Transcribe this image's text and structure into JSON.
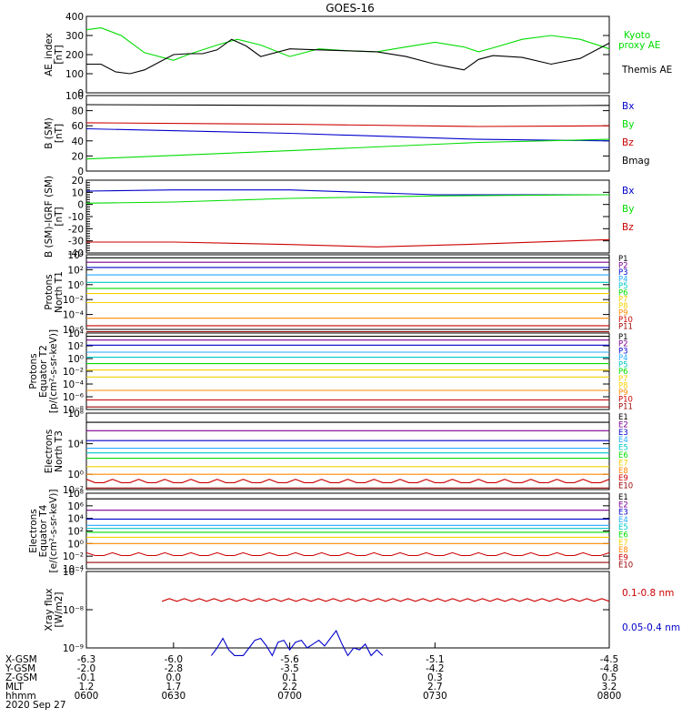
{
  "title": "GOES-16",
  "colors": {
    "black": "#000000",
    "green": "#00dd00",
    "blue": "#0000cc",
    "red": "#cc0000",
    "yellow": "#f5d000",
    "cyan": "#22aaff"
  },
  "chart_data": [
    {
      "type": "line",
      "ylabel": [
        "AE_index",
        "[nT]"
      ],
      "ylim": [
        0,
        400
      ],
      "yticks": [
        0,
        100,
        200,
        300,
        400
      ],
      "series": [
        {
          "name": "Kyoto proxy AE",
          "color": "#00dd00",
          "x": [
            6.3,
            6.25,
            6.18,
            6.1,
            6.0,
            5.95,
            5.85,
            5.78,
            5.7,
            5.6,
            5.5,
            5.4,
            5.3,
            5.2,
            5.1,
            5.0,
            4.95,
            4.9,
            4.8,
            4.7,
            4.6,
            4.5
          ],
          "y": [
            330,
            340,
            300,
            210,
            170,
            200,
            250,
            280,
            250,
            190,
            230,
            220,
            215,
            240,
            265,
            240,
            215,
            235,
            280,
            300,
            280,
            230
          ]
        },
        {
          "name": "Themis AE",
          "color": "#000000",
          "x": [
            6.3,
            6.25,
            6.2,
            6.15,
            6.1,
            6.05,
            6.0,
            5.95,
            5.9,
            5.85,
            5.8,
            5.75,
            5.7,
            5.6,
            5.5,
            5.4,
            5.3,
            5.2,
            5.1,
            5.05,
            5.0,
            4.95,
            4.9,
            4.8,
            4.7,
            4.6,
            4.5
          ],
          "y": [
            150,
            150,
            110,
            100,
            120,
            160,
            200,
            205,
            205,
            225,
            280,
            245,
            190,
            230,
            225,
            220,
            215,
            190,
            150,
            135,
            120,
            175,
            195,
            185,
            150,
            180,
            260
          ]
        }
      ]
    },
    {
      "type": "line",
      "ylabel": [
        "B (SM)",
        "[nT]"
      ],
      "ylim": [
        0,
        100
      ],
      "yticks": [
        0,
        20,
        40,
        60,
        80,
        100
      ],
      "series": [
        {
          "name": "Bx",
          "color": "#0000cc",
          "x": [
            6.3,
            5.6,
            4.95,
            4.5
          ],
          "y": [
            56,
            50,
            42,
            40
          ]
        },
        {
          "name": "By",
          "color": "#00dd00",
          "x": [
            6.3,
            5.6,
            4.95,
            4.5
          ],
          "y": [
            16,
            27,
            38,
            42
          ]
        },
        {
          "name": "Bz",
          "color": "#cc0000",
          "x": [
            6.3,
            5.6,
            4.95,
            4.5
          ],
          "y": [
            64,
            62,
            59,
            60
          ]
        },
        {
          "name": "Bmag",
          "color": "#000000",
          "x": [
            6.3,
            5.6,
            4.95,
            4.5
          ],
          "y": [
            88,
            87,
            86,
            87
          ]
        }
      ]
    },
    {
      "type": "line",
      "ylabel": [
        "B (SM)-IGRF (SM)",
        "[nT]"
      ],
      "ylim": [
        -40,
        20
      ],
      "yticks": [
        -40,
        -30,
        -20,
        -10,
        0,
        10,
        20
      ],
      "series": [
        {
          "name": "Bx",
          "color": "#0000cc",
          "x": [
            6.3,
            6.0,
            5.6,
            5.1,
            4.5
          ],
          "y": [
            11,
            12,
            12,
            8,
            8
          ]
        },
        {
          "name": "By",
          "color": "#00dd00",
          "x": [
            6.3,
            6.0,
            5.6,
            5.1,
            4.5
          ],
          "y": [
            1,
            2,
            5,
            7,
            8
          ]
        },
        {
          "name": "Bz",
          "color": "#cc0000",
          "x": [
            6.3,
            6.0,
            5.6,
            5.3,
            5.0,
            4.5
          ],
          "y": [
            -31,
            -31,
            -33,
            -35,
            -33,
            -29
          ]
        }
      ]
    },
    {
      "type": "line",
      "log": true,
      "ylabel": [
        "Protons",
        "North T1"
      ],
      "ylim_exp": [
        -6,
        4
      ],
      "yticks": [
        "10⁴",
        "10²",
        "10⁰",
        "10⁻²",
        "10⁻⁴",
        "10⁻⁶"
      ],
      "yticks_exp": [
        4,
        2,
        0,
        -2,
        -4,
        -6
      ],
      "series": [
        {
          "name": "P1",
          "color": "#000000",
          "y": 3.6
        },
        {
          "name": "P2",
          "color": "#7a0090",
          "y": 3.0
        },
        {
          "name": "P3",
          "color": "#0000cc",
          "y": 2.3
        },
        {
          "name": "P4",
          "color": "#22aaff",
          "y": 1.3
        },
        {
          "name": "P5",
          "color": "#00c8c8",
          "y": 0.3
        },
        {
          "name": "P6",
          "color": "#00dd00",
          "y": -0.5
        },
        {
          "name": "P7",
          "color": "#f5d000",
          "y": -1.2
        },
        {
          "name": "P8",
          "color": "#f5d000",
          "y": -2.4
        },
        {
          "name": "P9",
          "color": "#ff8800",
          "y": -4.5
        },
        {
          "name": "P10",
          "color": "#cc0000",
          "y": -5.5
        },
        {
          "name": "P11",
          "color": "#990000",
          "y": -6.3
        }
      ]
    },
    {
      "type": "line",
      "log": true,
      "ylabel": [
        "Protons",
        "Equator T2",
        "[p/(cm²-s-sr-keV)]"
      ],
      "ylim_exp": [
        -8,
        4
      ],
      "yticks": [
        "10⁴",
        "10²",
        "10⁰",
        "10⁻²",
        "10⁻⁴",
        "10⁻⁶",
        "10⁻⁸"
      ],
      "yticks_exp": [
        4,
        2,
        0,
        -2,
        -4,
        -6,
        -8
      ],
      "series": [
        {
          "name": "P1",
          "color": "#000000",
          "y": 3.5
        },
        {
          "name": "P2",
          "color": "#7a0090",
          "y": 2.9
        },
        {
          "name": "P3",
          "color": "#0000cc",
          "y": 2.1
        },
        {
          "name": "P4",
          "color": "#22aaff",
          "y": 1.0
        },
        {
          "name": "P5",
          "color": "#00c8c8",
          "y": 0.2
        },
        {
          "name": "P6",
          "color": "#00dd00",
          "y": -0.8
        },
        {
          "name": "P7",
          "color": "#f5d000",
          "y": -1.8
        },
        {
          "name": "P8",
          "color": "#f5d000",
          "y": -2.9
        },
        {
          "name": "P9",
          "color": "#ff8800",
          "y": -5.0
        },
        {
          "name": "P10",
          "color": "#cc0000",
          "y": -6.5
        },
        {
          "name": "P11",
          "color": "#990000",
          "y": -7.6
        }
      ]
    },
    {
      "type": "line",
      "log": true,
      "ylabel": [
        "Electrons",
        "North T3"
      ],
      "ylim_exp": [
        -2,
        8
      ],
      "yticks": [
        "10⁸",
        "10⁴",
        "10⁰",
        "10⁻²"
      ],
      "yticks_exp": [
        8,
        4,
        0,
        -2
      ],
      "series": [
        {
          "name": "E1",
          "color": "#000000",
          "y": 6.8
        },
        {
          "name": "E2",
          "color": "#7a0090",
          "y": 5.7
        },
        {
          "name": "E3",
          "color": "#0000cc",
          "y": 4.4
        },
        {
          "name": "E4",
          "color": "#22aaff",
          "y": 3.4
        },
        {
          "name": "E5",
          "color": "#00c8c8",
          "y": 2.8
        },
        {
          "name": "E6",
          "color": "#00dd00",
          "y": 2.1
        },
        {
          "name": "E7",
          "color": "#f5d000",
          "y": 1.0
        },
        {
          "name": "E8",
          "color": "#ff8800",
          "y": 0.0
        },
        {
          "name": "E9",
          "color": "#cc0000",
          "y": -1.0
        },
        {
          "name": "E10",
          "color": "#990000",
          "y": -1.8
        }
      ]
    },
    {
      "type": "line",
      "log": true,
      "ylabel": [
        "Electrons",
        "Equator T4",
        "[e/(cm²-s-sr-keV)]"
      ],
      "ylim_exp": [
        -4,
        8
      ],
      "yticks": [
        "10⁸",
        "10⁶",
        "10⁴",
        "10²",
        "10⁰",
        "10⁻²",
        "10⁻⁴"
      ],
      "yticks_exp": [
        8,
        6,
        4,
        2,
        0,
        -2,
        -4
      ],
      "series": [
        {
          "name": "E1",
          "color": "#000000",
          "y": 7.1
        },
        {
          "name": "E2",
          "color": "#7a0090",
          "y": 5.3
        },
        {
          "name": "E3",
          "color": "#0000cc",
          "y": 3.9
        },
        {
          "name": "E4",
          "color": "#22aaff",
          "y": 2.9
        },
        {
          "name": "E5",
          "color": "#00c8c8",
          "y": 2.4
        },
        {
          "name": "E6",
          "color": "#00dd00",
          "y": 1.8
        },
        {
          "name": "E7",
          "color": "#f5d000",
          "y": 1.0
        },
        {
          "name": "E8",
          "color": "#ff8800",
          "y": 0.0
        },
        {
          "name": "E9",
          "color": "#cc0000",
          "y": -1.8
        },
        {
          "name": "E10",
          "color": "#990000",
          "y": -3.0
        }
      ]
    },
    {
      "type": "line",
      "log": true,
      "ylabel": [
        "Xray flux",
        "[W/m2]"
      ],
      "ylim_exp": [
        -9,
        -7
      ],
      "yticks": [
        "10⁻⁷",
        "10⁻⁸",
        "10⁻⁹"
      ],
      "yticks_exp": [
        -7,
        -8,
        -9
      ],
      "series": [
        {
          "name": "0.1-0.8 nm",
          "color": "#cc0000",
          "y_exp": -7.75,
          "x_start": 6.04
        },
        {
          "name": "0.05-0.4 nm",
          "color": "#0000cc",
          "x": [
            5.87,
            5.85,
            5.83,
            5.81,
            5.79,
            5.76,
            5.74,
            5.72,
            5.7,
            5.68,
            5.66,
            5.64,
            5.62,
            5.6,
            5.58,
            5.56,
            5.54,
            5.52,
            5.5,
            5.48,
            5.46,
            5.44,
            5.42,
            5.4,
            5.38,
            5.36,
            5.34,
            5.32,
            5.3,
            5.28
          ],
          "y_exp": [
            -9.2,
            -9.0,
            -8.75,
            -9.05,
            -9.2,
            -9.2,
            -9.0,
            -8.8,
            -8.75,
            -8.95,
            -9.2,
            -8.85,
            -8.8,
            -9.05,
            -8.85,
            -8.8,
            -9.0,
            -8.9,
            -8.8,
            -8.95,
            -8.75,
            -8.55,
            -8.9,
            -9.2,
            -9.0,
            -9.05,
            -8.9,
            -9.2,
            -9.05,
            -9.2
          ]
        }
      ]
    }
  ],
  "x_axis": {
    "rows": [
      {
        "label": "X-GSM",
        "values": [
          "-6.3",
          "-6.0",
          "-5.6",
          "-5.1",
          "-4.5"
        ]
      },
      {
        "label": "Y-GSM",
        "values": [
          "-2.0",
          "-2.8",
          "-3.5",
          "-4.2",
          "-4.8"
        ]
      },
      {
        "label": "Z-GSM",
        "values": [
          "-0.1",
          "0.0",
          "0.1",
          "0.3",
          "0.5"
        ]
      },
      {
        "label": "MLT",
        "values": [
          "1.2",
          "1.7",
          "2.2",
          "2.7",
          "3.2"
        ]
      },
      {
        "label": "hhmm",
        "values": [
          "0600",
          "0630",
          "0700",
          "0730",
          "0800"
        ]
      }
    ],
    "date": "2020 Sep 27"
  },
  "legend_labels": {
    "ae": [
      "Kyoto",
      "proxy AE",
      "Themis AE"
    ],
    "b": [
      "Bx",
      "By",
      "Bz",
      "Bmag"
    ],
    "db": [
      "Bx",
      "By",
      "Bz"
    ],
    "xray": [
      "0.1-0.8 nm",
      "0.05-0.4 nm"
    ]
  }
}
